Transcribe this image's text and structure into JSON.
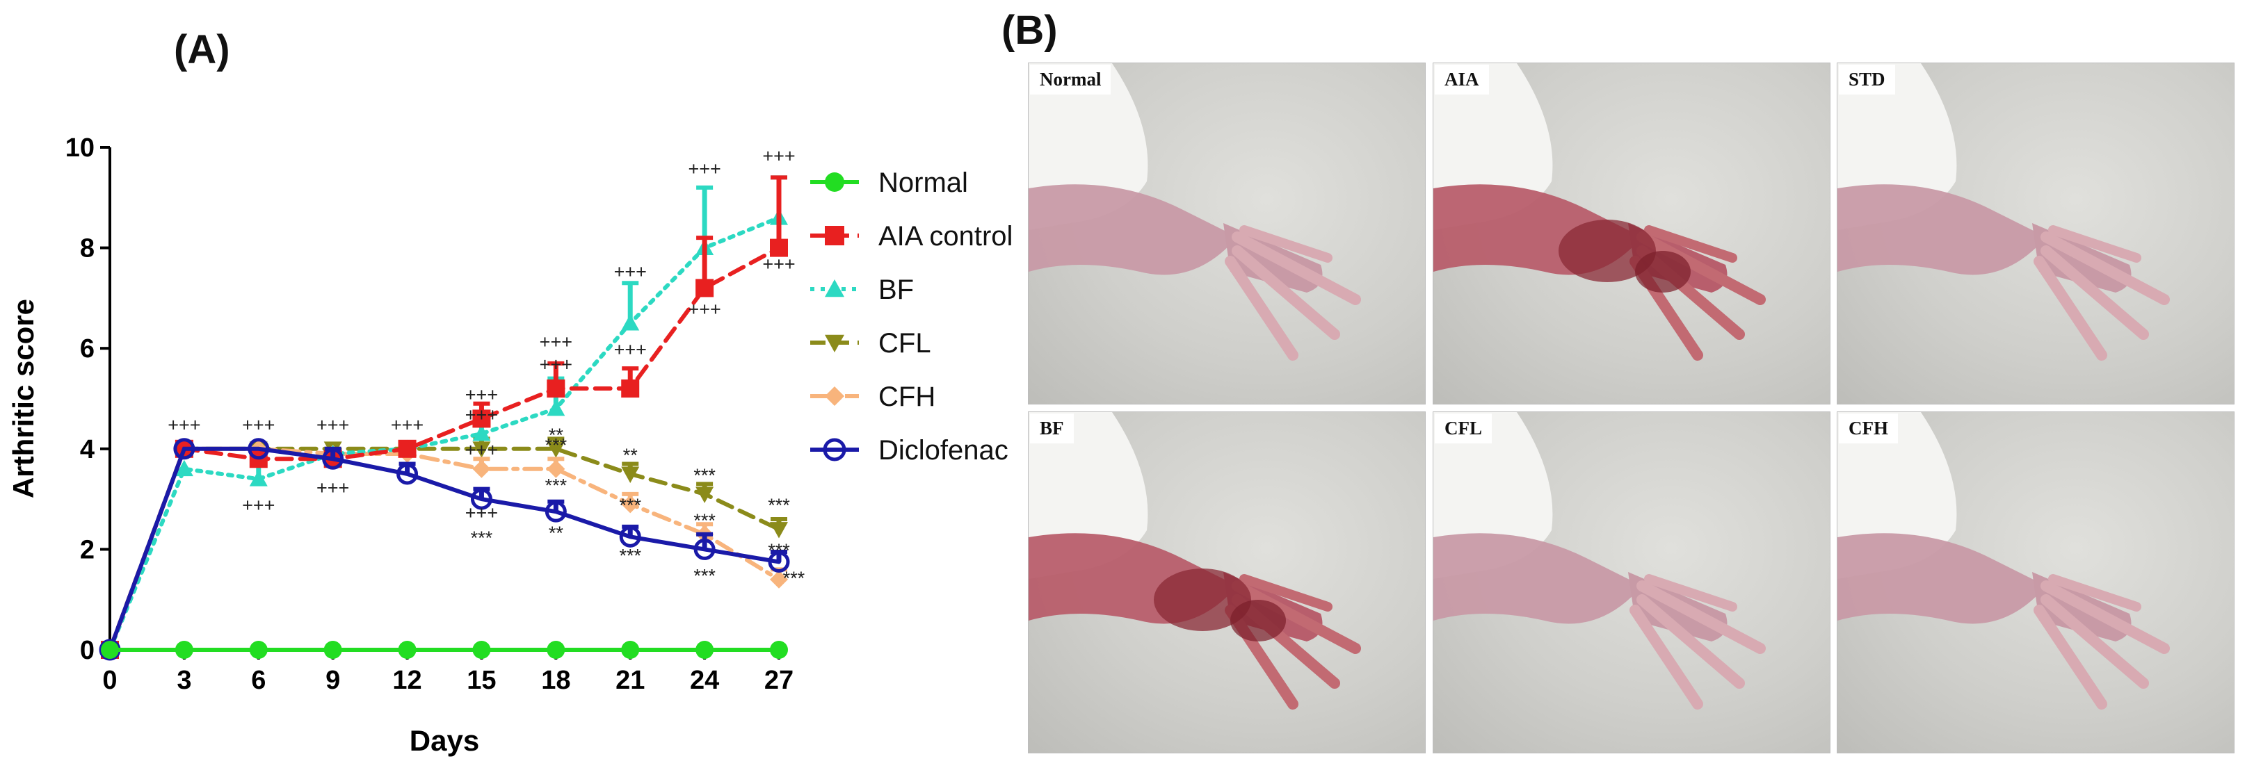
{
  "panel_a_label": "(A)",
  "panel_b_label": "(B)",
  "chart_data": {
    "type": "line",
    "xlabel": "Days",
    "ylabel": "Arthritic score",
    "x": [
      0,
      3,
      6,
      9,
      12,
      15,
      18,
      21,
      24,
      27
    ],
    "xlim": [
      0,
      27
    ],
    "ylim": [
      0,
      10
    ],
    "x_ticks": [
      "0",
      "3",
      "6",
      "9",
      "12",
      "15",
      "18",
      "21",
      "24",
      "27"
    ],
    "y_ticks": [
      "0",
      "2",
      "4",
      "6",
      "8",
      "10"
    ],
    "grid": false,
    "legend_position": "right",
    "series": [
      {
        "name": "Normal",
        "color": "#22dd22",
        "marker": "circle",
        "line": "solid",
        "values": [
          0,
          0,
          0,
          0,
          0,
          0,
          0,
          0,
          0,
          0
        ],
        "errors": [
          0,
          0,
          0,
          0,
          0,
          0,
          0,
          0,
          0,
          0
        ]
      },
      {
        "name": "AIA control",
        "color": "#e82020",
        "marker": "square",
        "line": "dashed",
        "values": [
          0,
          4.0,
          3.8,
          3.8,
          4.0,
          4.6,
          5.2,
          5.2,
          7.2,
          8.0
        ],
        "errors": [
          0,
          0,
          0,
          0,
          0,
          0.3,
          0.5,
          0.4,
          1.0,
          1.4
        ]
      },
      {
        "name": "BF",
        "color": "#2cd9c2",
        "marker": "triangle-up",
        "line": "dotted",
        "values": [
          0,
          3.6,
          3.4,
          3.9,
          4.0,
          4.3,
          4.8,
          6.5,
          8.0,
          8.6
        ],
        "errors": [
          0,
          0,
          0.3,
          0,
          0,
          0.4,
          0.6,
          0.8,
          1.2,
          0.8
        ]
      },
      {
        "name": "CFL",
        "color": "#8b8b1a",
        "marker": "triangle-down",
        "line": "dashed",
        "values": [
          0,
          4.0,
          4.0,
          4.0,
          4.0,
          4.0,
          4.0,
          3.5,
          3.1,
          2.4
        ],
        "errors": [
          0,
          0,
          0,
          0,
          0,
          0.2,
          0.2,
          0.2,
          0.2,
          0.2
        ]
      },
      {
        "name": "CFH",
        "color": "#f8b47c",
        "marker": "diamond",
        "line": "dash-dot",
        "values": [
          0,
          4.0,
          4.0,
          3.9,
          3.9,
          3.6,
          3.6,
          2.9,
          2.3,
          1.4
        ],
        "errors": [
          0,
          0,
          0,
          0,
          0,
          0.2,
          0.2,
          0.2,
          0.2,
          0.2
        ]
      },
      {
        "name": "Diclofenac",
        "color": "#1a1aa8",
        "marker": "open-circle",
        "line": "solid",
        "values": [
          0,
          4.0,
          4.0,
          3.8,
          3.5,
          3.0,
          2.75,
          2.25,
          2.0,
          1.75
        ],
        "errors": [
          0,
          0,
          0,
          0.2,
          0.2,
          0.2,
          0.2,
          0.2,
          0.3,
          0.2
        ]
      }
    ],
    "annotations": [
      {
        "text": "+++",
        "x": 3,
        "y": 4.35
      },
      {
        "text": "+++",
        "x": 6,
        "y": 4.35
      },
      {
        "text": "+++",
        "x": 6,
        "y": 2.75
      },
      {
        "text": "+++",
        "x": 9,
        "y": 4.35
      },
      {
        "text": "+++",
        "x": 9,
        "y": 3.1
      },
      {
        "text": "+++",
        "x": 12,
        "y": 4.35
      },
      {
        "text": "+++",
        "x": 15,
        "y": 4.95
      },
      {
        "text": "+++",
        "x": 15,
        "y": 4.55
      },
      {
        "text": "+++",
        "x": 15,
        "y": 3.85
      },
      {
        "text": "+++",
        "x": 15,
        "y": 2.6
      },
      {
        "text": "***",
        "x": 15,
        "y": 2.1
      },
      {
        "text": "+++",
        "x": 18,
        "y": 6.0
      },
      {
        "text": "+++",
        "x": 18,
        "y": 5.55
      },
      {
        "text": "**",
        "x": 18,
        "y": 4.15
      },
      {
        "text": "***",
        "x": 18,
        "y": 3.95
      },
      {
        "text": "***",
        "x": 18,
        "y": 3.15
      },
      {
        "text": "**",
        "x": 18,
        "y": 2.2
      },
      {
        "text": "+++",
        "x": 21,
        "y": 7.4
      },
      {
        "text": "+++",
        "x": 21,
        "y": 5.85
      },
      {
        "text": "**",
        "x": 21,
        "y": 3.75
      },
      {
        "text": "***",
        "x": 21,
        "y": 2.75
      },
      {
        "text": "***",
        "x": 21,
        "y": 1.75
      },
      {
        "text": "+++",
        "x": 24,
        "y": 9.45
      },
      {
        "text": "+++",
        "x": 24,
        "y": 6.65
      },
      {
        "text": "***",
        "x": 24,
        "y": 3.35
      },
      {
        "text": "***",
        "x": 24,
        "y": 2.45
      },
      {
        "text": "***",
        "x": 24,
        "y": 1.35
      },
      {
        "text": "+++",
        "x": 27,
        "y": 9.7
      },
      {
        "text": "+++",
        "x": 27,
        "y": 7.55
      },
      {
        "text": "***",
        "x": 27,
        "y": 2.75
      },
      {
        "text": "***",
        "x": 27,
        "y": 1.85
      },
      {
        "text": "***",
        "x": 27.6,
        "y": 1.3
      }
    ]
  },
  "photos": [
    {
      "label": "Normal",
      "wound": false
    },
    {
      "label": "AIA",
      "wound": true
    },
    {
      "label": "STD",
      "wound": false
    },
    {
      "label": "BF",
      "wound": true
    },
    {
      "label": "CFL",
      "wound": false
    },
    {
      "label": "CFH",
      "wound": false
    }
  ]
}
